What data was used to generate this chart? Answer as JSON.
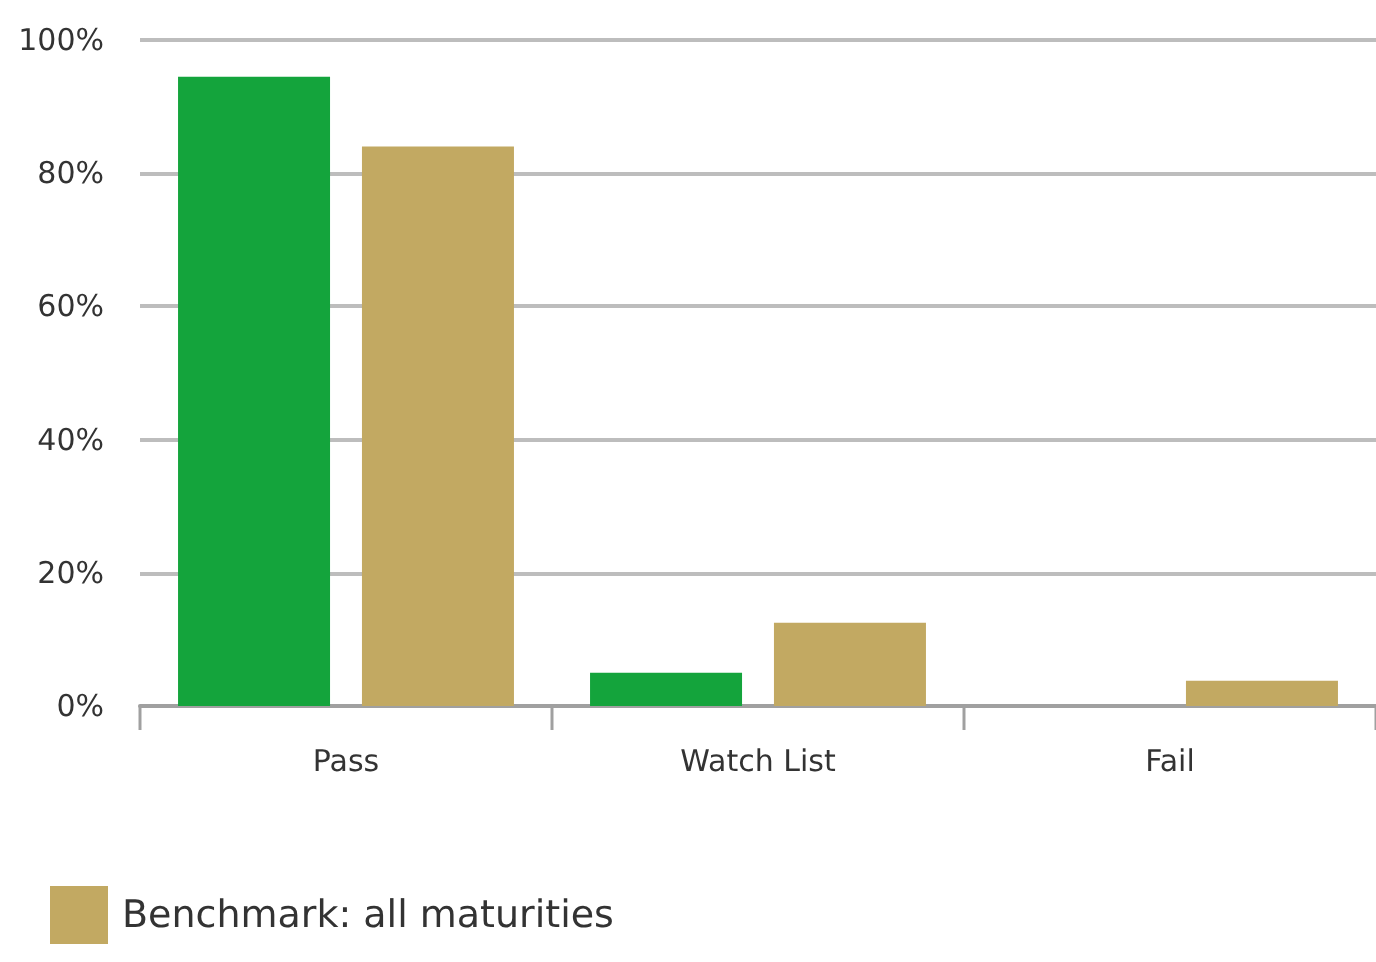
{
  "chart_data": {
    "type": "bar",
    "categories": [
      "Pass",
      "Watch List",
      "Fail"
    ],
    "series": [
      {
        "color": "#14a43c",
        "values": [
          94.5,
          5.0,
          0
        ]
      },
      {
        "name": "Benchmark: all maturities",
        "color": "#c2a962",
        "values": [
          84.0,
          12.5,
          3.8
        ]
      }
    ],
    "ylim": [
      0,
      100
    ],
    "yticks": [
      {
        "value": 0,
        "label": "0%"
      },
      {
        "value": 20,
        "label": "20%"
      },
      {
        "value": 40,
        "label": "40%"
      },
      {
        "value": 60,
        "label": "60%"
      },
      {
        "value": 80,
        "label": "80%"
      },
      {
        "value": 100,
        "label": "100%"
      }
    ],
    "grid": "y",
    "legend": "bottom left"
  }
}
